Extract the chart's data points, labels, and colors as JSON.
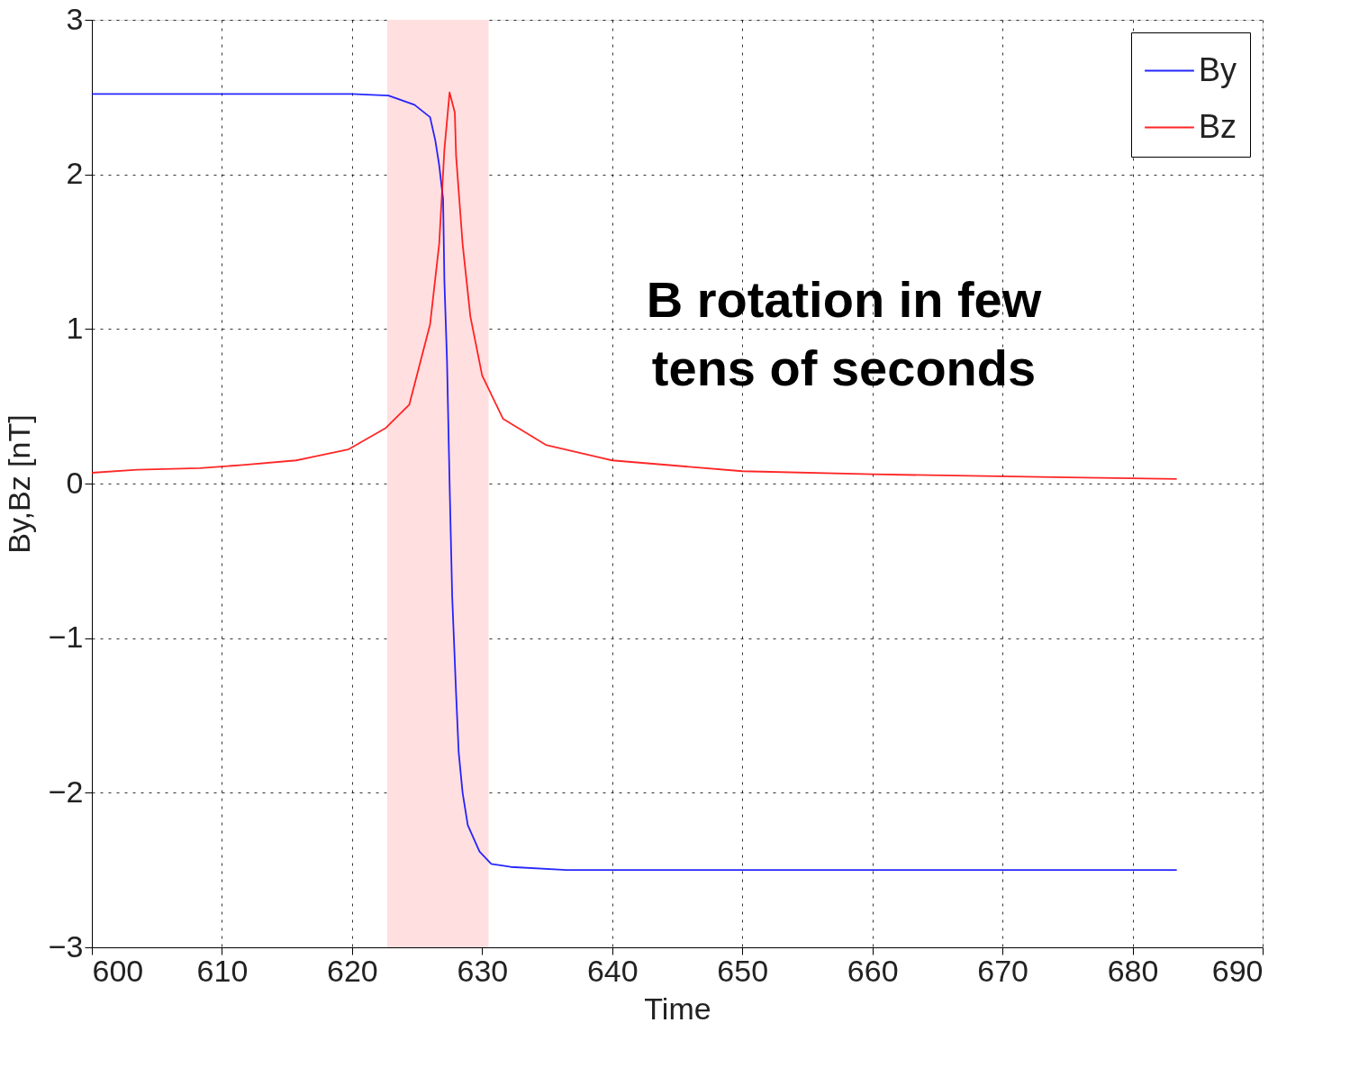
{
  "chart_data": {
    "type": "line",
    "xlabel": "Time",
    "ylabel": "By,Bz [nT]",
    "xlim": [
      600,
      690
    ],
    "xticks": [
      600,
      610,
      620,
      630,
      640,
      650,
      660,
      670,
      680,
      690
    ],
    "ylim": [
      -3,
      3
    ],
    "yticks": [
      -3,
      -2,
      -1,
      0,
      1,
      2,
      3
    ],
    "grid": true,
    "legend": "top right",
    "line_style": "solid",
    "bands": [
      {
        "axis": "x",
        "from": 622.7,
        "to": 630.5,
        "color": "#ffdfe0"
      }
    ],
    "annotations": [
      "B rotation in few\ntens of seconds"
    ],
    "series": [
      {
        "name": "By",
        "color": "#0000ff",
        "x": [
          600,
          620,
          622.8,
          624.8,
          626.0,
          626.4,
          626.7,
          627.0,
          627.1,
          627.3,
          627.5,
          627.7,
          628.0,
          628.2,
          628.5,
          628.9,
          629.8,
          630.7,
          632.2,
          636.5,
          683.4
        ],
        "values": [
          2.52,
          2.52,
          2.51,
          2.45,
          2.37,
          2.22,
          2.06,
          1.84,
          1.31,
          0.8,
          0.0,
          -0.73,
          -1.36,
          -1.74,
          -2.0,
          -2.21,
          -2.38,
          -2.46,
          -2.48,
          -2.5,
          -2.5
        ]
      },
      {
        "name": "Bz",
        "color": "#ff0000",
        "x": [
          600,
          603.5,
          608.3,
          611.6,
          615.7,
          619.7,
          622.6,
          624.4,
          626.0,
          626.7,
          627.1,
          627.5,
          627.9,
          628.0,
          628.5,
          629.1,
          630.0,
          631.6,
          634.9,
          640,
          650,
          660,
          675,
          683.4
        ],
        "values": [
          0.07,
          0.09,
          0.1,
          0.12,
          0.15,
          0.22,
          0.36,
          0.51,
          1.03,
          1.55,
          2.16,
          2.53,
          2.4,
          2.12,
          1.55,
          1.08,
          0.7,
          0.42,
          0.25,
          0.15,
          0.08,
          0.06,
          0.04,
          0.03
        ]
      }
    ]
  }
}
